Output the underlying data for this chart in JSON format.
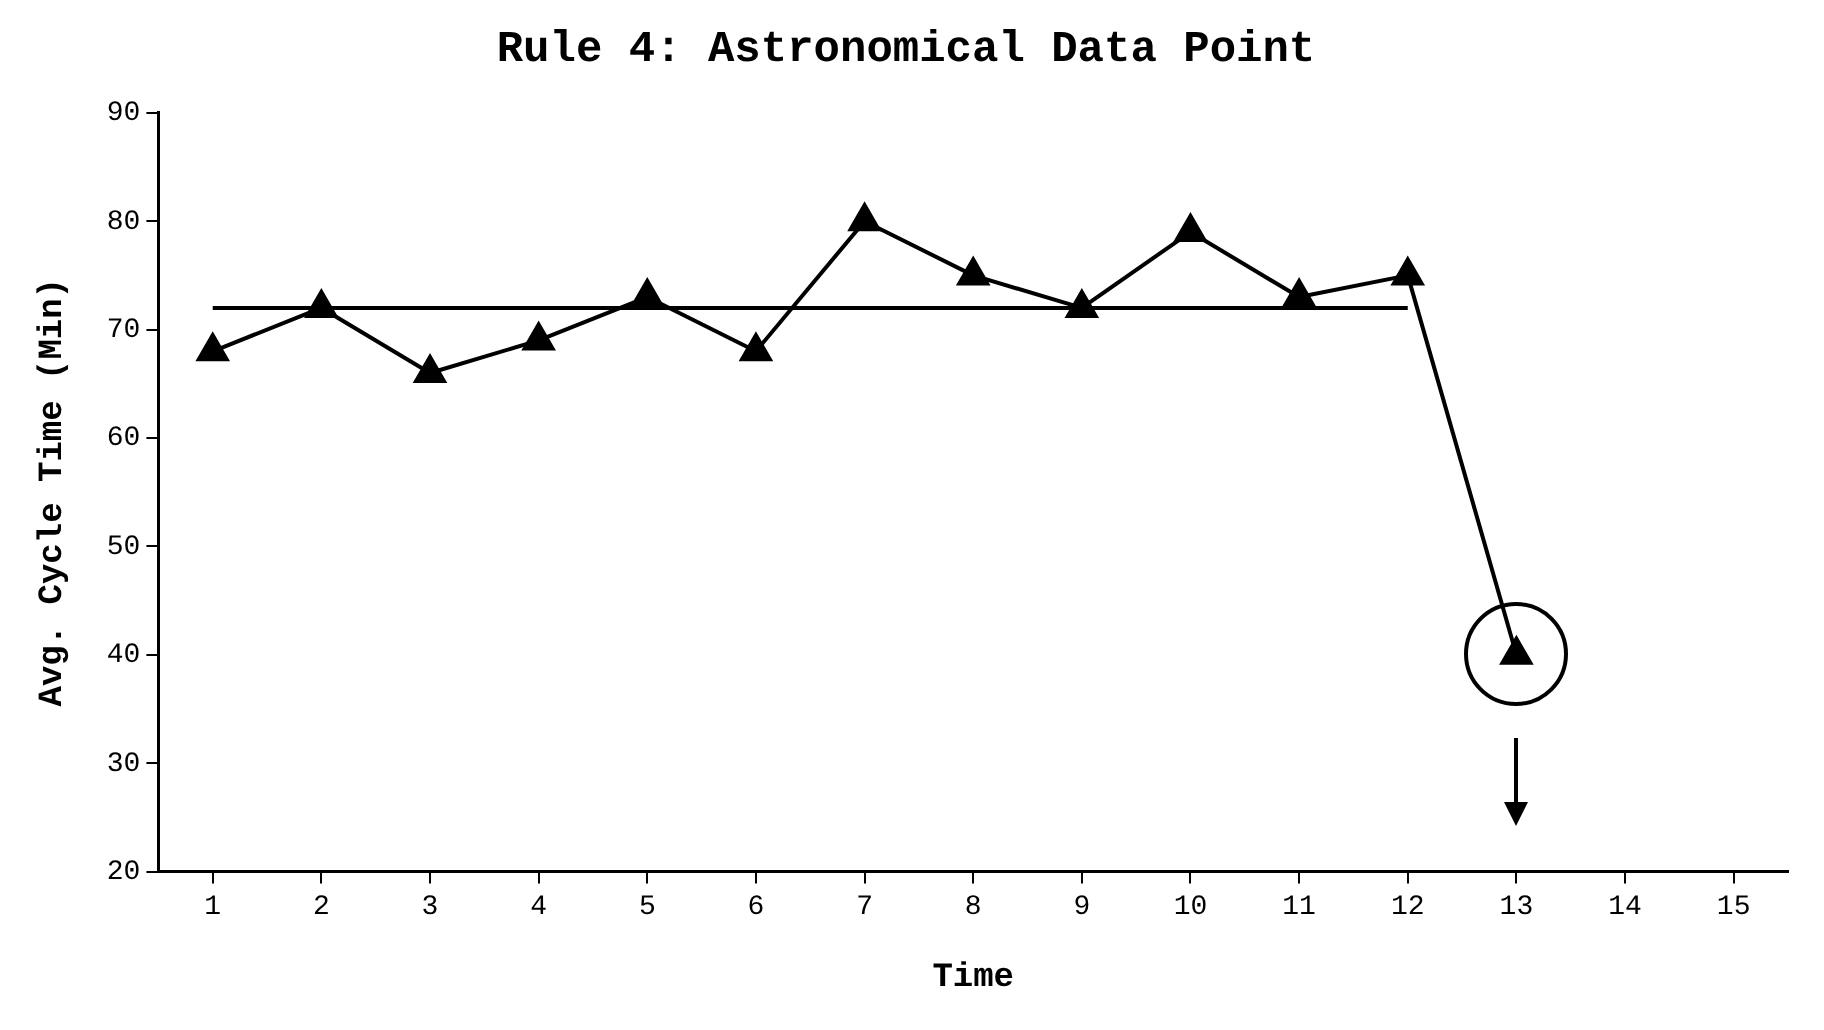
{
  "chart_data": {
    "type": "line",
    "title": "Rule 4: Astronomical Data Point",
    "xlabel": "Time",
    "ylabel": "Avg. Cycle Time (Min)",
    "x": [
      1,
      2,
      3,
      4,
      5,
      6,
      7,
      8,
      9,
      10,
      11,
      12,
      13
    ],
    "series": [
      {
        "color": "#000000",
        "values": [
          68,
          72,
          66,
          69,
          73,
          68,
          80,
          75,
          72,
          79,
          73,
          75,
          40
        ]
      }
    ],
    "xlim": [
      0.5,
      15.5
    ],
    "xticks": [
      1,
      2,
      3,
      4,
      5,
      6,
      7,
      8,
      9,
      10,
      11,
      12,
      13,
      14,
      15
    ],
    "ylim": [
      20,
      90
    ],
    "yticks": [
      20,
      30,
      40,
      50,
      60,
      70,
      80,
      90
    ],
    "ref_lines": [
      {
        "axis": "y",
        "value": 72,
        "color": "#000000"
      }
    ],
    "grid": false,
    "legend": false,
    "marker": "triangle",
    "line_style": "solid"
  }
}
